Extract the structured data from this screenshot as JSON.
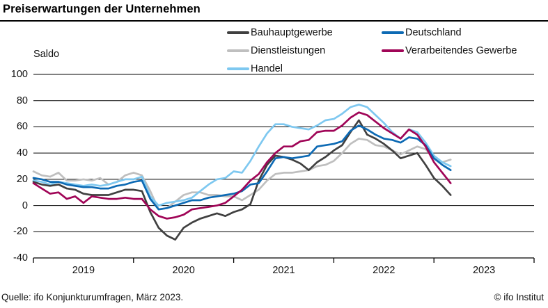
{
  "header": {
    "title": "Preiserwartungen der Unternehmen"
  },
  "chart": {
    "ylabel": "Saldo"
  },
  "footer": {
    "source": "Quelle: ifo Konjunkturumfragen, März 2023.",
    "copyright": "© ifo Institut"
  },
  "chart_data": {
    "type": "line",
    "title": "Preiserwartungen der Unternehmen",
    "ylabel": "Saldo",
    "ylim": [
      -40,
      100
    ],
    "yticks": [
      100,
      80,
      60,
      40,
      20,
      0,
      -20,
      -40
    ],
    "x_start": "2019-01",
    "x_end": "2023-03",
    "months_total": 51,
    "xtick_years": [
      "2019",
      "2020",
      "2021",
      "2022",
      "2023"
    ],
    "grid": "horizontal-black",
    "legend_position": "top",
    "axis_color": "#000000",
    "draw_order": [
      2,
      4,
      0,
      1,
      3
    ],
    "legend_layout": [
      {
        "series_index": 0,
        "col": 0,
        "row": 0
      },
      {
        "series_index": 2,
        "col": 0,
        "row": 1
      },
      {
        "series_index": 4,
        "col": 0,
        "row": 2
      },
      {
        "series_index": 1,
        "col": 1,
        "row": 0
      },
      {
        "series_index": 3,
        "col": 1,
        "row": 1
      }
    ],
    "series": [
      {
        "name": "Bauhauptgewerbe",
        "color": "#404040",
        "values": [
          18,
          16,
          15,
          16,
          13,
          12,
          9,
          8,
          8,
          8,
          10,
          12,
          12,
          11,
          -5,
          -17,
          -23,
          -26,
          -17,
          -13,
          -10,
          -8,
          -6,
          -8,
          -5,
          -3,
          1,
          19,
          31,
          38,
          37,
          35,
          32,
          27,
          33,
          37,
          42,
          46,
          56,
          65,
          54,
          51,
          47,
          42,
          36,
          38,
          40,
          31,
          21,
          15,
          8
        ]
      },
      {
        "name": "Deutschland",
        "color": "#0d6ab4",
        "values": [
          21,
          20,
          18,
          18,
          16,
          15,
          14,
          14,
          13,
          13,
          15,
          16,
          18,
          19,
          5,
          -3,
          -2,
          0,
          2,
          4,
          4,
          6,
          7,
          8,
          9,
          11,
          16,
          17,
          26,
          36,
          37,
          36,
          37,
          38,
          45,
          46,
          47,
          49,
          57,
          61,
          58,
          54,
          51,
          50,
          48,
          52,
          51,
          46,
          36,
          31,
          27
        ]
      },
      {
        "name": "Dienstleistungen",
        "color": "#bfbfbf",
        "values": [
          26,
          23,
          22,
          25,
          19,
          19,
          20,
          19,
          21,
          16,
          18,
          23,
          25,
          23,
          11,
          -3,
          -2,
          3,
          8,
          10,
          10,
          8,
          8,
          7,
          7,
          4,
          8,
          12,
          19,
          24,
          25,
          25,
          26,
          27,
          30,
          31,
          34,
          40,
          47,
          51,
          50,
          46,
          45,
          42,
          39,
          42,
          45,
          43,
          36,
          33,
          35
        ]
      },
      {
        "name": "Verarbeitendes Gewerbe",
        "color": "#a00557",
        "values": [
          17,
          13,
          9,
          10,
          5,
          7,
          2,
          7,
          6,
          5,
          5,
          6,
          5,
          5,
          -3,
          -8,
          -10,
          -9,
          -7,
          -3,
          -2,
          -1,
          0,
          2,
          7,
          12,
          19,
          24,
          33,
          40,
          45,
          45,
          49,
          50,
          56,
          57,
          57,
          61,
          67,
          71,
          69,
          64,
          59,
          55,
          51,
          58,
          54,
          45,
          33,
          25,
          17
        ]
      },
      {
        "name": "Handel",
        "color": "#7ec8f0",
        "values": [
          19,
          18,
          16,
          18,
          17,
          16,
          15,
          16,
          15,
          16,
          18,
          20,
          20,
          22,
          7,
          0,
          2,
          3,
          4,
          6,
          11,
          16,
          20,
          21,
          26,
          25,
          34,
          45,
          55,
          62,
          62,
          60,
          59,
          58,
          61,
          65,
          66,
          70,
          75,
          77,
          75,
          69,
          63,
          56,
          51,
          58,
          56,
          48,
          38,
          33,
          30
        ]
      }
    ]
  }
}
